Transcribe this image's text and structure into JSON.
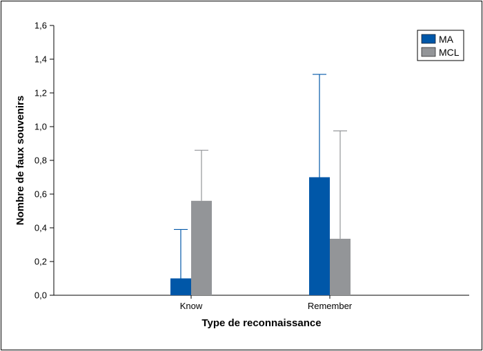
{
  "chart_data": {
    "type": "bar",
    "title": "",
    "xlabel": "Type de reconnaissance",
    "ylabel": "Nombre de faux souvenirs",
    "categories": [
      "Know",
      "Remember"
    ],
    "series": [
      {
        "name": "MA",
        "values": [
          0.1,
          0.7
        ],
        "error": [
          0.29,
          0.61
        ]
      },
      {
        "name": "MCL",
        "values": [
          0.56,
          0.335
        ],
        "error": [
          0.3,
          0.64
        ]
      }
    ],
    "ylim": [
      0,
      1.6
    ],
    "yticks": [
      "0,0",
      "0,2",
      "0,4",
      "0,6",
      "0,8",
      "1,0",
      "1,2",
      "1,4",
      "1,6"
    ],
    "error_bars": "upper",
    "grid": false,
    "legend_position": "top-right"
  },
  "colors": {
    "MA": "#0057a8",
    "MCL": "#939598",
    "error_MA": "#0057a8",
    "error_MCL": "#939598"
  }
}
